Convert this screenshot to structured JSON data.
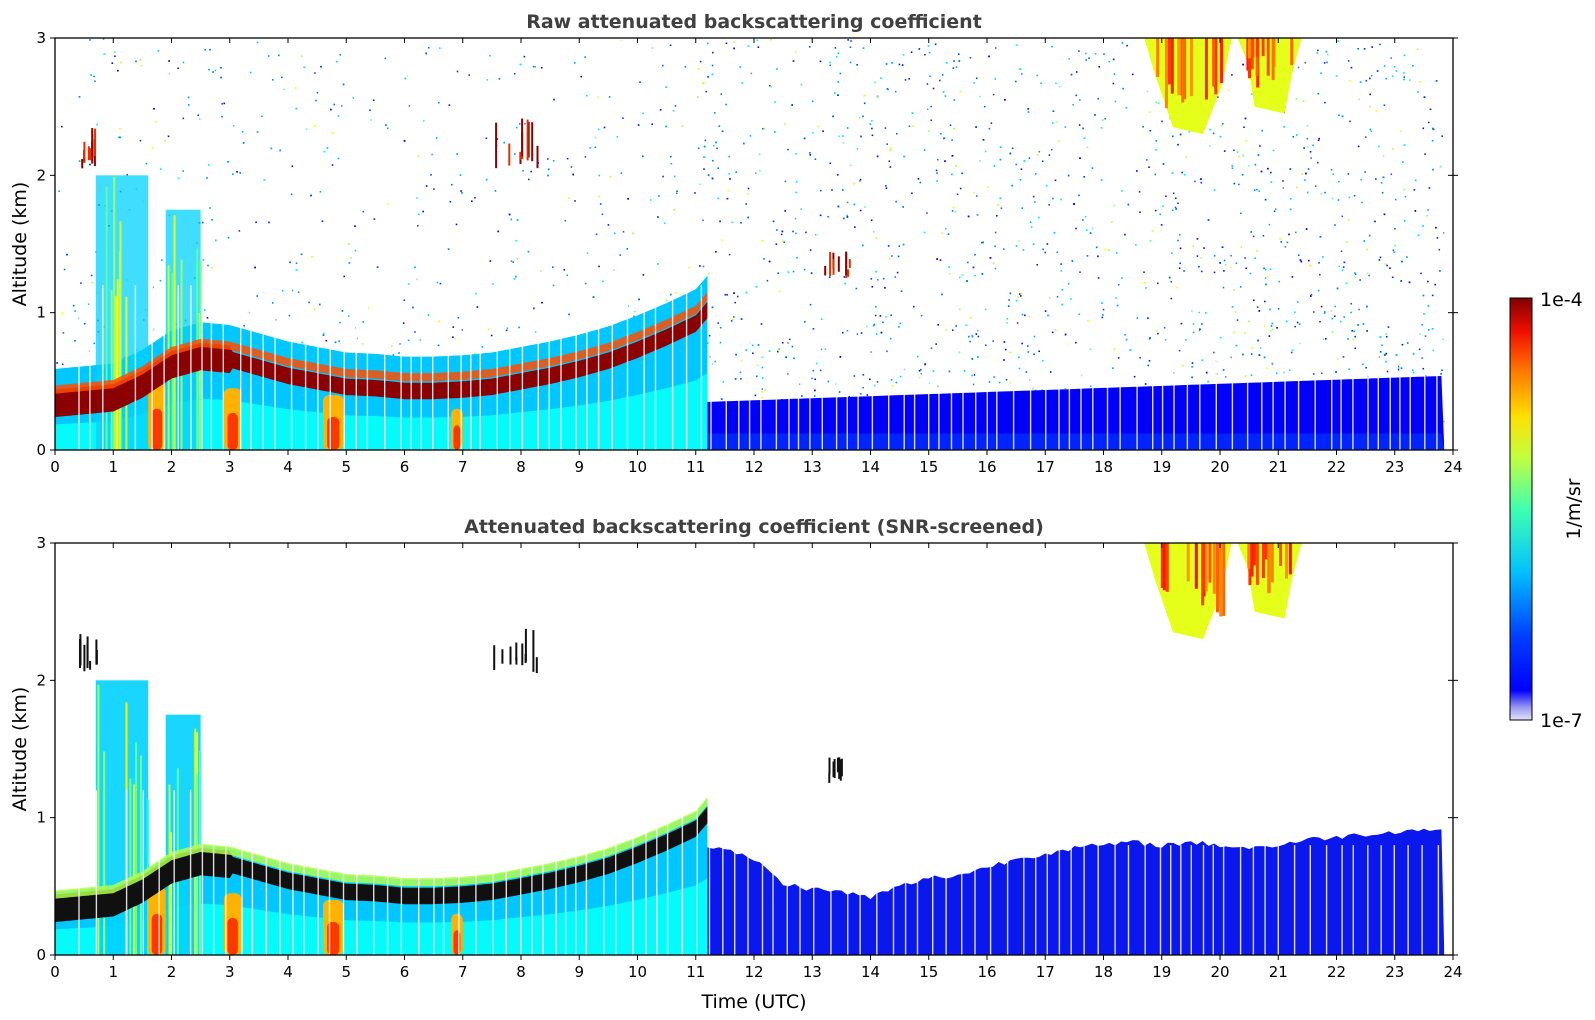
{
  "chart_data": [
    {
      "type": "heatmap",
      "title": "Raw attenuated backscattering coefficient",
      "xlabel": "",
      "ylabel": "Altitude (km)",
      "xlim": [
        0,
        24
      ],
      "ylim": [
        0,
        3
      ],
      "xticks": [
        "0",
        "1",
        "2",
        "3",
        "4",
        "5",
        "6",
        "7",
        "8",
        "9",
        "10",
        "11",
        "12",
        "13",
        "14",
        "15",
        "16",
        "17",
        "18",
        "19",
        "20",
        "21",
        "22",
        "23",
        "24"
      ],
      "yticks": [
        "0",
        "1",
        "2",
        "3"
      ],
      "screened": false
    },
    {
      "type": "heatmap",
      "title": "Attenuated backscattering coefficient (SNR-screened)",
      "xlabel": "Time (UTC)",
      "ylabel": "Altitude (km)",
      "xlim": [
        0,
        24
      ],
      "ylim": [
        0,
        3
      ],
      "xticks": [
        "0",
        "1",
        "2",
        "3",
        "4",
        "5",
        "6",
        "7",
        "8",
        "9",
        "10",
        "11",
        "12",
        "13",
        "14",
        "15",
        "16",
        "17",
        "18",
        "19",
        "20",
        "21",
        "22",
        "23",
        "24"
      ],
      "yticks": [
        "0",
        "1",
        "2",
        "3"
      ],
      "screened": true
    }
  ],
  "colorbar": {
    "label": "1/m/sr",
    "max_label": "1e-4",
    "min_label": "1e-7",
    "colormap": "jet",
    "scale": "log"
  },
  "features": {
    "boundary_layer_top_km": [
      {
        "t": 0,
        "z": 0.34
      },
      {
        "t": 0.5,
        "z": 0.36
      },
      {
        "t": 1,
        "z": 0.38
      },
      {
        "t": 1.5,
        "z": 0.48
      },
      {
        "t": 2,
        "z": 0.62
      },
      {
        "t": 2.5,
        "z": 0.68
      },
      {
        "t": 3,
        "z": 0.66
      },
      {
        "t": 3.5,
        "z": 0.6
      },
      {
        "t": 4,
        "z": 0.54
      },
      {
        "t": 4.5,
        "z": 0.5
      },
      {
        "t": 5,
        "z": 0.46
      },
      {
        "t": 5.5,
        "z": 0.45
      },
      {
        "t": 6,
        "z": 0.43
      },
      {
        "t": 6.5,
        "z": 0.43
      },
      {
        "t": 7,
        "z": 0.44
      },
      {
        "t": 7.5,
        "z": 0.46
      },
      {
        "t": 8,
        "z": 0.5
      },
      {
        "t": 8.5,
        "z": 0.54
      },
      {
        "t": 9,
        "z": 0.59
      },
      {
        "t": 9.5,
        "z": 0.65
      },
      {
        "t": 10,
        "z": 0.73
      },
      {
        "t": 10.5,
        "z": 0.82
      },
      {
        "t": 11,
        "z": 0.92
      },
      {
        "t": 11.2,
        "z": 1.02
      }
    ],
    "screened_upper_edge_km": [
      {
        "t": 11.2,
        "z": 0.8
      },
      {
        "t": 12,
        "z": 0.7
      },
      {
        "t": 12.5,
        "z": 0.52
      },
      {
        "t": 13,
        "z": 0.48
      },
      {
        "t": 13.5,
        "z": 0.46
      },
      {
        "t": 14,
        "z": 0.42
      },
      {
        "t": 14.5,
        "z": 0.5
      },
      {
        "t": 15,
        "z": 0.56
      },
      {
        "t": 15.5,
        "z": 0.58
      },
      {
        "t": 16,
        "z": 0.64
      },
      {
        "t": 16.5,
        "z": 0.7
      },
      {
        "t": 17,
        "z": 0.74
      },
      {
        "t": 17.5,
        "z": 0.78
      },
      {
        "t": 18,
        "z": 0.8
      },
      {
        "t": 18.5,
        "z": 0.82
      },
      {
        "t": 19,
        "z": 0.8
      },
      {
        "t": 19.5,
        "z": 0.82
      },
      {
        "t": 20,
        "z": 0.8
      },
      {
        "t": 20.5,
        "z": 0.78
      },
      {
        "t": 21,
        "z": 0.8
      },
      {
        "t": 21.5,
        "z": 0.84
      },
      {
        "t": 22,
        "z": 0.86
      },
      {
        "t": 22.5,
        "z": 0.88
      },
      {
        "t": 23,
        "z": 0.9
      },
      {
        "t": 23.8,
        "z": 0.92
      }
    ],
    "high_cloud": [
      {
        "t_start": 18.7,
        "t_end": 20.2,
        "z_base": 2.3,
        "z_top": 3.0
      },
      {
        "t_start": 20.3,
        "t_end": 21.4,
        "z_base": 2.45,
        "z_top": 3.0
      }
    ],
    "residual_layers": [
      {
        "t_start": 0.4,
        "t_end": 0.8,
        "z_base": 2.05,
        "z_top": 2.3
      },
      {
        "t_start": 7.5,
        "t_end": 8.3,
        "z_base": 2.05,
        "z_top": 2.4
      },
      {
        "t_start": 13.2,
        "t_end": 13.7,
        "z_base": 1.25,
        "z_top": 1.4
      }
    ],
    "plumes": [
      {
        "t_start": 0.7,
        "t_end": 1.6,
        "z_top": 2.0
      },
      {
        "t_start": 1.9,
        "t_end": 2.5,
        "z_top": 1.75
      }
    ],
    "data_end_hour": 23.85
  }
}
